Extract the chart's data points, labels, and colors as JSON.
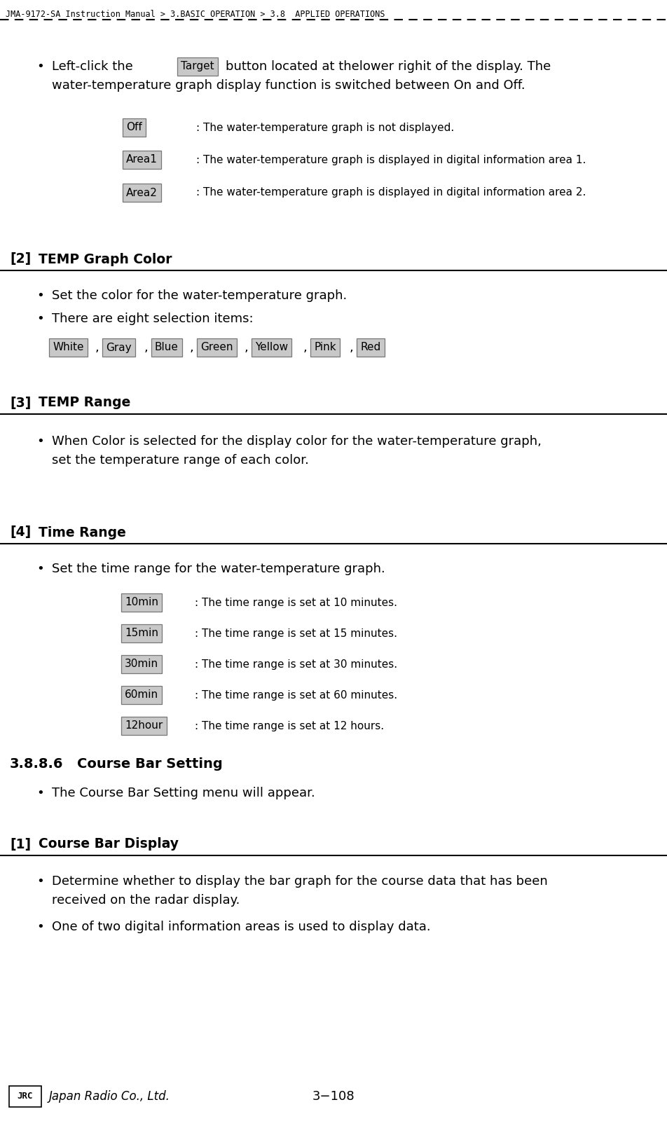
{
  "bg_color": "#ffffff",
  "header_text": "JMA-9172-SA Instruction Manual > 3.BASIC OPERATION > 3.8  APPLIED OPERATIONS",
  "button_bg": "#c8c8c8",
  "button_border": "#777777",
  "button_text_color": "#000000",
  "footer_page": "3−108",
  "off_desc": ": The water-temperature graph is not displayed.",
  "area1_desc": ": The water-temperature graph is displayed in digital information area 1.",
  "area2_desc": ": The water-temperature graph is displayed in digital information area 2.",
  "time_descs": [
    ": The time range is set at 10 minutes.",
    ": The time range is set at 15 minutes.",
    ": The time range is set at 30 minutes.",
    ": The time range is set at 60 minutes.",
    ": The time range is set at 12 hours."
  ],
  "color_labels": [
    "White",
    "Gray",
    "Blue",
    "Green",
    "Yellow",
    "Pink",
    "Red"
  ]
}
